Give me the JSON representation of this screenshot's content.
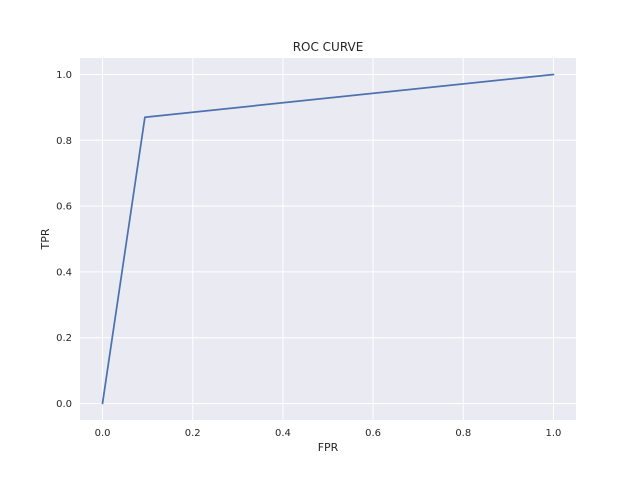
{
  "chart_data": {
    "type": "line",
    "title": "ROC CURVE",
    "xlabel": "FPR",
    "ylabel": "TPR",
    "xlim": [
      -0.05,
      1.05
    ],
    "ylim": [
      -0.05,
      1.05
    ],
    "x_ticks": [
      0.0,
      0.2,
      0.4,
      0.6,
      0.8,
      1.0
    ],
    "y_ticks": [
      0.0,
      0.2,
      0.4,
      0.6,
      0.8,
      1.0
    ],
    "x_tick_labels": [
      "0.0",
      "0.2",
      "0.4",
      "0.6",
      "0.8",
      "1.0"
    ],
    "y_tick_labels": [
      "0.0",
      "0.2",
      "0.4",
      "0.6",
      "0.8",
      "1.0"
    ],
    "grid": true,
    "series": [
      {
        "x": [
          0.0,
          0.094,
          1.0
        ],
        "y": [
          0.0,
          0.87,
          1.0
        ]
      }
    ],
    "colors": {
      "line": "#4c72b0",
      "background": "#eaeaf2",
      "grid": "#ffffff"
    }
  }
}
